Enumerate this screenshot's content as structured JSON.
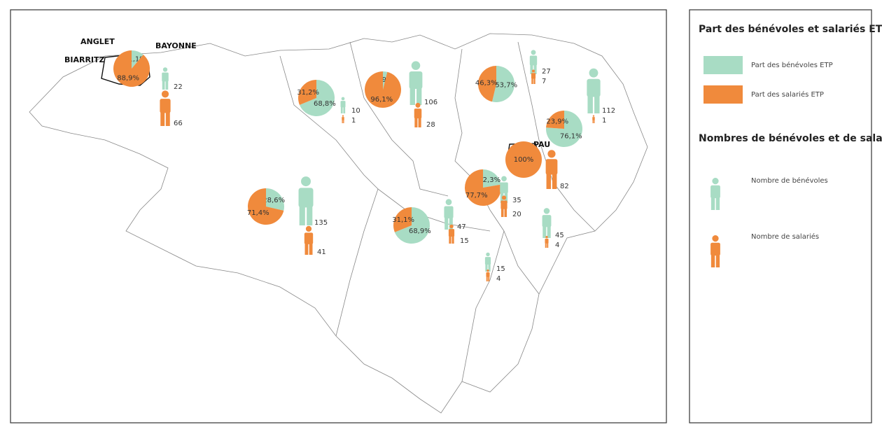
{
  "map": {
    "colors": {
      "benevoles": "#a8dcc4",
      "salaries": "#f08a3c"
    },
    "city_labels": [
      "ANGLET",
      "BAYONNE",
      "BIARRITZ",
      "PAU"
    ],
    "zones": [
      {
        "benevoles": 11.1,
        "benevoles_label": "11,1%",
        "salaries": 88.9,
        "salaries_label": "88,9%",
        "n_benevoles": 22,
        "n_salaries": 66
      },
      {
        "benevoles": 68.8,
        "benevoles_label": "68,8%",
        "salaries": 31.2,
        "salaries_label": "31,2%",
        "n_benevoles": 10,
        "n_salaries": 1
      },
      {
        "benevoles": 3.9,
        "benevoles_label": "3,9%",
        "salaries": 96.1,
        "salaries_label": "96,1%",
        "n_benevoles": 106,
        "n_salaries": 28
      },
      {
        "benevoles": 53.7,
        "benevoles_label": "53,7%",
        "salaries": 46.3,
        "salaries_label": "46,3%",
        "n_benevoles": 27,
        "n_salaries": 7
      },
      {
        "benevoles": 76.1,
        "benevoles_label": "76,1%",
        "salaries": 23.9,
        "salaries_label": "23,9%",
        "n_benevoles": 112,
        "n_salaries": 1
      },
      {
        "salaries": 100,
        "salaries_label": "100%",
        "n_salaries": 82
      },
      {
        "benevoles": 22.3,
        "benevoles_label": "22,3%",
        "salaries": 77.7,
        "salaries_label": "77,7%",
        "n_benevoles": 35,
        "n_salaries": 20
      },
      {
        "benevoles": 28.6,
        "benevoles_label": "28,6%",
        "salaries": 71.4,
        "salaries_label": "71,4%",
        "n_benevoles": 135,
        "n_salaries": 41
      },
      {
        "benevoles": 68.9,
        "benevoles_label": "68,9%",
        "salaries": 31.1,
        "salaries_label": "31,1%",
        "n_benevoles": 47,
        "n_salaries": 15
      },
      {
        "n_benevoles": 45,
        "n_salaries": 4
      },
      {
        "n_benevoles": 15,
        "n_salaries": 4
      }
    ]
  },
  "legend": {
    "title_share": "Part des bénévoles et salariés ETP",
    "share_items": [
      "Part des bénévoles ETP",
      "Part des salariés ETP"
    ],
    "title_count": "Nombres de bénévoles et de salariés",
    "count_items": [
      "Nombre de bénévoles",
      "Nombre de salariés"
    ]
  }
}
